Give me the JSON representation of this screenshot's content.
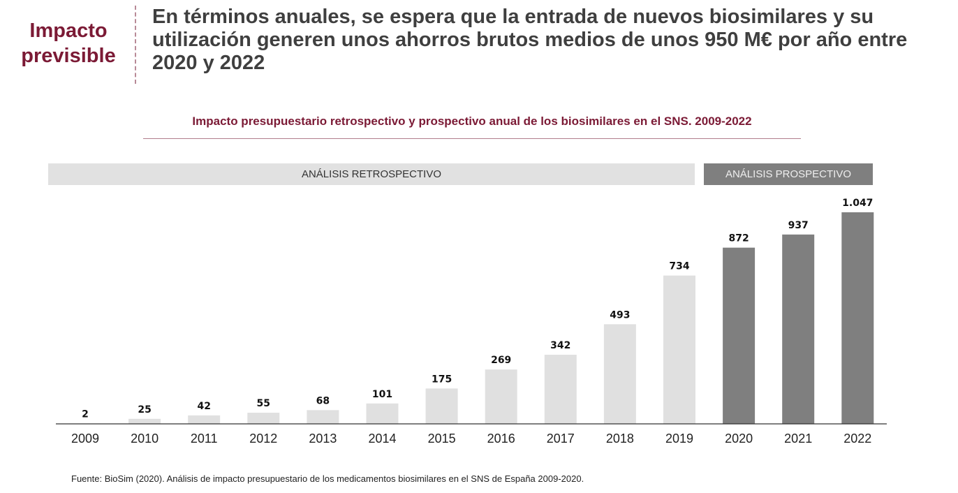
{
  "side_title": "Impacto previsible",
  "headline": "En términos anuales, se espera que la entrada de nuevos biosimilares y su utilización generen unos ahorros brutos medios de unos 950 M€ por año entre 2020 y 2022",
  "source": "Fuente: BioSim (2020). Análisis de impacto presupuestario de los medicamentos biosimilares en el SNS de España 2009-2020.",
  "colors": {
    "accent": "#7b1a35",
    "retrospective": "#e0e0e0",
    "prospective": "#7f7f7f"
  },
  "chart_data": {
    "type": "bar",
    "title": "Impacto presupuestario retrospectivo y prospectivo anual de los biosimilares en el SNS. 2009-2022",
    "bands": {
      "retrospective": "ANÁLISIS RETROSPECTIVO",
      "prospective": "ANÁLISIS PROSPECTIVO"
    },
    "categories": [
      "2009",
      "2010",
      "2011",
      "2012",
      "2013",
      "2014",
      "2015",
      "2016",
      "2017",
      "2018",
      "2019",
      "2020",
      "2021",
      "2022"
    ],
    "values": [
      2,
      25,
      42,
      55,
      68,
      101,
      175,
      269,
      342,
      493,
      734,
      872,
      937,
      1047
    ],
    "data_labels": [
      "2",
      "25",
      "42",
      "55",
      "68",
      "101",
      "175",
      "269",
      "342",
      "493",
      "734",
      "872",
      "937",
      "1.047"
    ],
    "period": [
      "retrospective",
      "retrospective",
      "retrospective",
      "retrospective",
      "retrospective",
      "retrospective",
      "retrospective",
      "retrospective",
      "retrospective",
      "retrospective",
      "retrospective",
      "prospective",
      "prospective",
      "prospective"
    ],
    "ylim": [
      0,
      1047
    ],
    "grid": false,
    "xlabel": "",
    "ylabel": ""
  }
}
